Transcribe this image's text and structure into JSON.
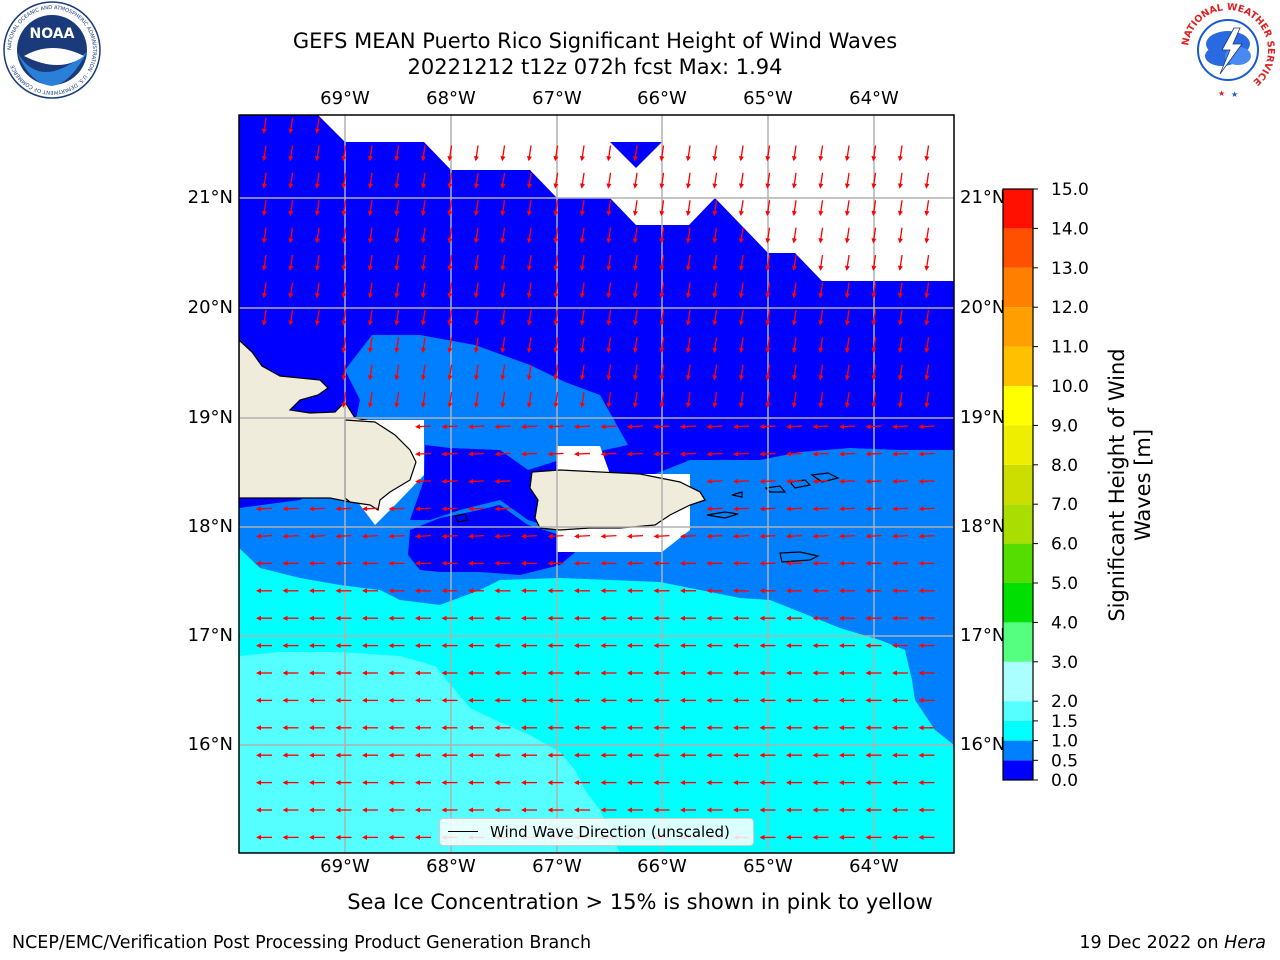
{
  "title": {
    "line1": "GEFS MEAN Puerto Rico Significant Height of Wind Waves",
    "line2": "20221212 t12z 072h fcst   Max: 1.94"
  },
  "subtitle": "Sea Ice Concentration > 15% is shown in pink to yellow",
  "footer": {
    "left": "NCEP/EMC/Verification Post Processing Product Generation Branch",
    "right_date": "19 Dec 2022 on ",
    "right_host": "Hera"
  },
  "legend": {
    "label": "Wind Wave Direction (unscaled)"
  },
  "colorbar": {
    "title_line1": "Significant Height of Wind",
    "title_line2": "Waves [m]",
    "levels": [
      "0.0",
      "0.5",
      "1.0",
      "1.5",
      "2.0",
      "3.0",
      "4.0",
      "5.0",
      "6.0",
      "7.0",
      "8.0",
      "9.0",
      "10.0",
      "11.0",
      "12.0",
      "13.0",
      "14.0",
      "15.0"
    ],
    "colors": [
      "#0000ff",
      "#0080ff",
      "#00ffff",
      "#55ffff",
      "#aaffff",
      "#55ff80",
      "#00e000",
      "#55dd00",
      "#aadd00",
      "#ccdd00",
      "#eeee00",
      "#ffff00",
      "#ffc000",
      "#ffa000",
      "#ff8000",
      "#ff5000",
      "#ff1000"
    ]
  },
  "map": {
    "lon_labels": [
      "69°W",
      "68°W",
      "67°W",
      "66°W",
      "65°W",
      "64°W"
    ],
    "lat_labels": [
      "16°N",
      "17°N",
      "18°N",
      "19°N",
      "20°N",
      "21°N"
    ],
    "land_color": "#efecdc",
    "arrow_color": "#ff0000"
  },
  "logos": {
    "left": {
      "name": "NOAA",
      "ring_text": "NATIONAL OCEANIC AND ATMOSPHERIC ADMINISTRATION · U.S. DEPARTMENT OF COMMERCE"
    },
    "right": {
      "ring_text": "NATIONAL WEATHER SERVICE"
    }
  }
}
